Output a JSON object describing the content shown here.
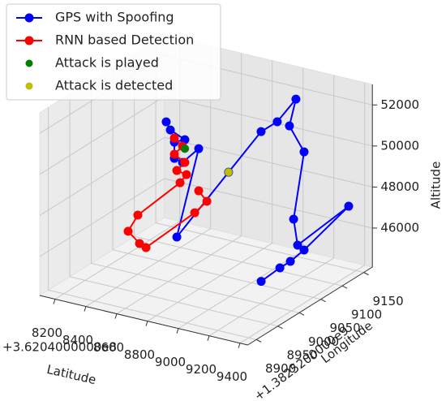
{
  "chart_data": {
    "type": "line3d",
    "xlabel": "Latitude",
    "ylabel": "Longitude",
    "zlabel": "Altitude",
    "x_offset_label": "+3.6204000000e8",
    "y_offset_label": "+1.3825200000e9",
    "xlim": [
      8100,
      9450
    ],
    "ylim": [
      8880,
      9170
    ],
    "zlim": [
      44100,
      53000
    ],
    "xticks": [
      8200,
      8400,
      8600,
      8800,
      9000,
      9200,
      9400
    ],
    "yticks": [
      8900,
      8950,
      9000,
      9050,
      9100,
      9150
    ],
    "zticks": [
      46000,
      48000,
      50000,
      52000
    ],
    "grid": true,
    "legend": "upper left",
    "series": [
      {
        "name": "GPS with Spoofing",
        "type": "line",
        "color": "#0000ff",
        "x": [
          8586,
          8613,
          8707,
          8639,
          8639,
          8692,
          8797,
          8655,
          8991,
          8923,
          9028,
          9149,
          9107,
          9202,
          9134,
          9160,
          9352,
          9202,
          9113,
          9045,
          9063
        ],
        "y": [
          9000,
          9000,
          9000,
          9000,
          9000,
          9000,
          9000,
          9000,
          9000,
          9100,
          9100,
          9100,
          9100,
          9100,
          9100,
          9100,
          9150,
          9100,
          9100,
          9100,
          9050
        ],
        "z": [
          51859,
          51511,
          51203,
          50966,
          50175,
          50068,
          50930,
          46369,
          50128,
          50677,
          51341,
          52661,
          51282,
          50187,
          46784,
          45566,
          47151,
          45404,
          44693,
          44254,
          44282
        ]
      },
      {
        "name": "RNN based Detection",
        "type": "line",
        "color": "#ff0000",
        "x": [
          8639,
          8692,
          8639,
          8707,
          8655,
          8718,
          8676,
          8402,
          8339,
          8413,
          8455,
          8771,
          8850,
          8797
        ],
        "y": [
          9000,
          9000,
          9000,
          9000,
          9000,
          9000,
          9000,
          9000,
          9000,
          9000,
          9000,
          9000,
          9000,
          9000
        ],
        "z": [
          51163,
          50859,
          50373,
          50096,
          49610,
          49523,
          49053,
          46985,
          46084,
          45622,
          45499,
          47760,
          48456,
          48875
        ]
      },
      {
        "name": "Attack is played",
        "type": "scatter",
        "color": "#008000",
        "x": [
          8707
        ],
        "y": [
          9000
        ],
        "z": [
          50768
        ]
      },
      {
        "name": "Attack is detected",
        "type": "scatter",
        "color": "#bfbf00",
        "x": [
          8991
        ],
        "y": [
          9000
        ],
        "z": [
          50128
        ]
      }
    ]
  }
}
